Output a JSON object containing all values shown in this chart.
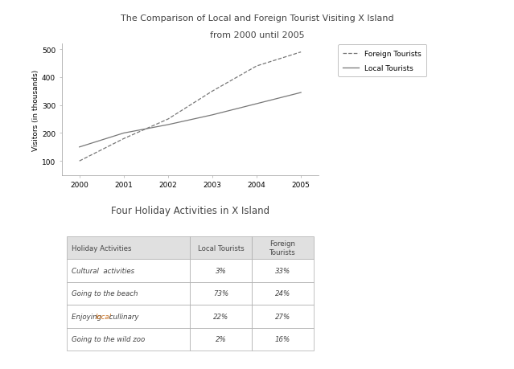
{
  "title_line1": "The Comparison of Local and Foreign Tourist Visiting X Island",
  "title_line2": "from 2000 until 2005",
  "years": [
    2000,
    2001,
    2002,
    2003,
    2004,
    2005
  ],
  "foreign_tourists": [
    100,
    180,
    250,
    350,
    440,
    490
  ],
  "local_tourists": [
    150,
    200,
    230,
    265,
    305,
    345
  ],
  "ylabel": "Visitors (in thousands)",
  "yticks": [
    100,
    200,
    300,
    400,
    500
  ],
  "ylim": [
    50,
    520
  ],
  "legend_foreign": "Foreign Tourists",
  "legend_local": "Local Tourists",
  "table_title": "Four Holiday Activities in X Island",
  "table_headers": [
    "Holiday Activities",
    "Local Tourists",
    "Foreign\nTourists"
  ],
  "table_rows": [
    [
      "Cultural  activities",
      "3%",
      "33%"
    ],
    [
      "Going to the beach",
      "73%",
      "24%"
    ],
    [
      "Enjoying local cullinary",
      "22%",
      "27%"
    ],
    [
      "Going to the wild zoo",
      "2%",
      "16%"
    ]
  ],
  "line_color": "#777777",
  "background_color": "#ffffff",
  "header_bg": "#e0e0e0",
  "table_border_color": "#aaaaaa",
  "local_highlight_color": "#c87020",
  "text_color": "#444444"
}
